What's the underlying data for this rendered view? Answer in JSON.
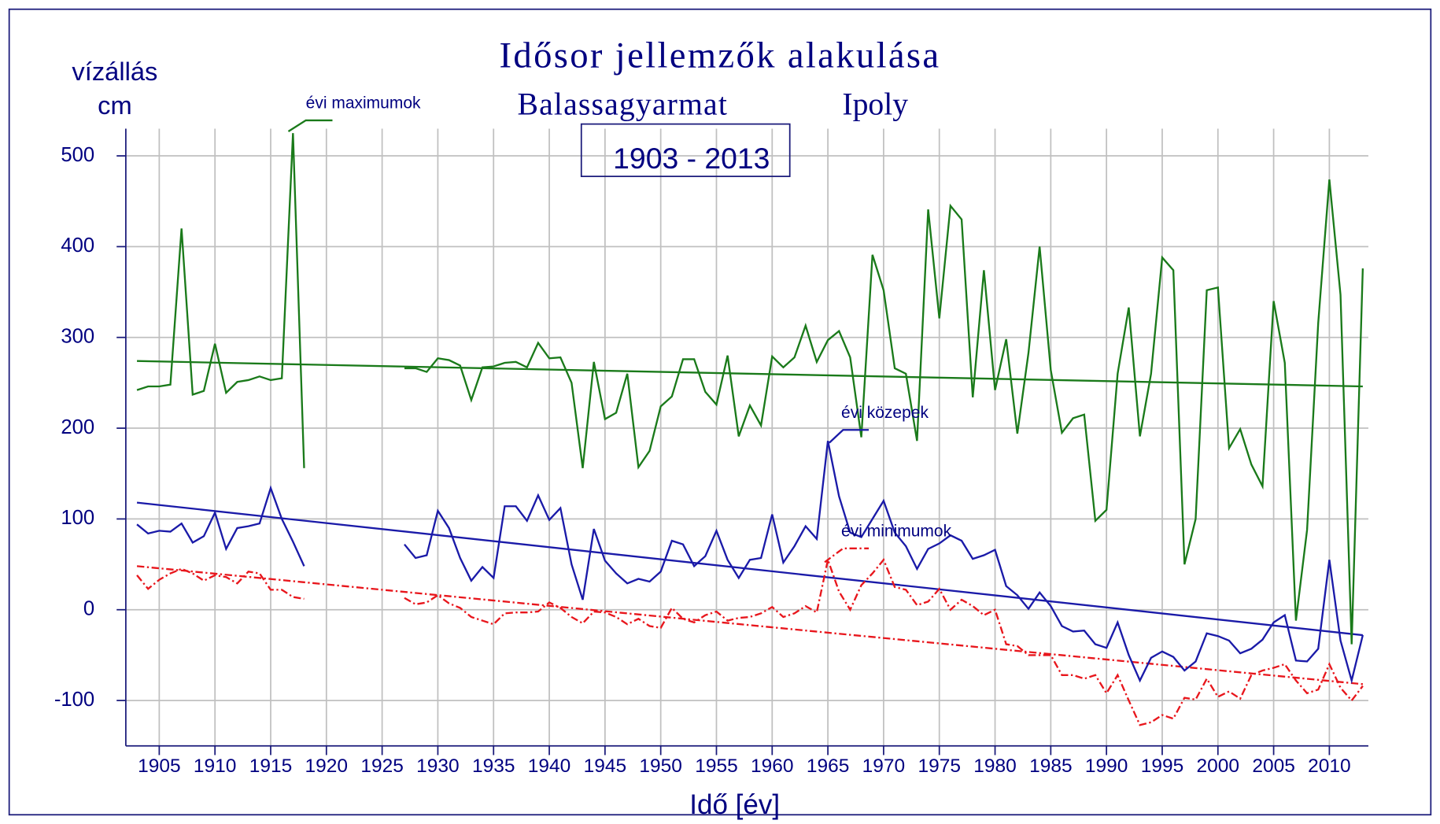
{
  "chart_data": {
    "type": "line",
    "title": "Idősor jellemzők alakulása",
    "subtitle": "Balassagyarmat",
    "river": "Ipoly",
    "period": "1903 - 2013",
    "y_label": [
      "vízállás",
      "cm"
    ],
    "x_label": "Idő [év]",
    "xlim": [
      1902,
      2013.5
    ],
    "ylim": [
      -150,
      530
    ],
    "xticks": [
      1905,
      1910,
      1915,
      1920,
      1925,
      1930,
      1935,
      1940,
      1945,
      1950,
      1955,
      1960,
      1965,
      1970,
      1975,
      1980,
      1985,
      1990,
      1995,
      2000,
      2005,
      2010
    ],
    "yticks": [
      -100,
      0,
      100,
      200,
      300,
      400,
      500
    ],
    "grid": true,
    "x": [
      1903,
      1904,
      1905,
      1906,
      1907,
      1908,
      1909,
      1910,
      1911,
      1912,
      1913,
      1914,
      1915,
      1916,
      1917,
      1918,
      1919,
      1920,
      1921,
      1922,
      1923,
      1924,
      1925,
      1926,
      1927,
      1928,
      1929,
      1930,
      1931,
      1932,
      1933,
      1934,
      1935,
      1936,
      1937,
      1938,
      1939,
      1940,
      1941,
      1942,
      1943,
      1944,
      1945,
      1946,
      1947,
      1948,
      1949,
      1950,
      1951,
      1952,
      1953,
      1954,
      1955,
      1956,
      1957,
      1958,
      1959,
      1960,
      1961,
      1962,
      1963,
      1964,
      1965,
      1966,
      1967,
      1968,
      1969,
      1970,
      1971,
      1972,
      1973,
      1974,
      1975,
      1976,
      1977,
      1978,
      1979,
      1980,
      1981,
      1982,
      1983,
      1984,
      1985,
      1986,
      1987,
      1988,
      1989,
      1990,
      1991,
      1992,
      1993,
      1994,
      1995,
      1996,
      1997,
      1998,
      1999,
      2000,
      2001,
      2002,
      2003,
      2004,
      2005,
      2006,
      2007,
      2008,
      2009,
      2010,
      2011,
      2012,
      2013
    ],
    "series": [
      {
        "name": "évi maximumok",
        "color": "#1a7a1a",
        "line_style": "solid",
        "values": [
          242,
          246,
          246,
          248,
          420,
          237,
          241,
          293,
          239,
          251,
          253,
          257,
          253,
          255,
          525,
          156,
          null,
          null,
          null,
          null,
          null,
          null,
          null,
          null,
          266,
          266,
          262,
          277,
          275,
          269,
          231,
          267,
          268,
          272,
          273,
          267,
          294,
          277,
          278,
          250,
          156,
          273,
          210,
          217,
          260,
          157,
          175,
          224,
          235,
          276,
          276,
          240,
          226,
          280,
          191,
          225,
          203,
          279,
          267,
          278,
          313,
          273,
          297,
          307,
          278,
          190,
          391,
          352,
          266,
          260,
          186,
          441,
          321,
          445,
          430,
          234,
          374,
          242,
          298,
          194,
          283,
          400,
          264,
          195,
          211,
          215,
          98,
          110,
          260,
          333,
          191,
          260,
          388,
          374,
          50,
          100,
          352,
          355,
          178,
          199,
          160,
          136,
          340,
          272,
          -12,
          88,
          316,
          474,
          347,
          -38,
          376
        ]
      },
      {
        "name": "évi közepek",
        "color": "#1a1aa8",
        "line_style": "solid",
        "values": [
          94,
          84,
          87,
          86,
          95,
          74,
          81,
          107,
          67,
          90,
          92,
          95,
          134,
          100,
          75,
          48,
          null,
          null,
          null,
          null,
          null,
          null,
          null,
          null,
          72,
          57,
          60,
          109,
          90,
          57,
          32,
          47,
          35,
          114,
          114,
          98,
          126,
          99,
          112,
          50,
          11,
          89,
          54,
          40,
          29,
          34,
          31,
          42,
          76,
          72,
          48,
          59,
          87,
          55,
          35,
          55,
          57,
          105,
          52,
          70,
          92,
          78,
          186,
          125,
          85,
          80,
          100,
          120,
          85,
          70,
          45,
          67,
          73,
          82,
          76,
          56,
          60,
          66,
          26,
          16,
          1,
          19,
          4,
          -18,
          -24,
          -23,
          -38,
          -42,
          -14,
          -50,
          -78,
          -53,
          -46,
          -52,
          -67,
          -57,
          -26,
          -29,
          -34,
          -48,
          -43,
          -33,
          -14,
          -6,
          -56,
          -57,
          -43,
          55,
          -34,
          -78,
          -28
        ]
      },
      {
        "name": "évi minimumok",
        "color": "#e8161c",
        "line_style": "dash-dot",
        "values": [
          38,
          23,
          33,
          40,
          45,
          40,
          32,
          38,
          36,
          29,
          42,
          40,
          22,
          22,
          14,
          12,
          null,
          null,
          null,
          null,
          null,
          null,
          null,
          null,
          13,
          6,
          8,
          16,
          7,
          2,
          -8,
          -12,
          -16,
          -4,
          -3,
          -3,
          -2,
          8,
          2,
          -8,
          -15,
          -2,
          -3,
          -8,
          -16,
          -10,
          -18,
          -20,
          2,
          -10,
          -14,
          -6,
          -2,
          -12,
          -9,
          -8,
          -4,
          3,
          -8,
          -4,
          4,
          -3,
          55,
          20,
          0,
          27,
          40,
          55,
          25,
          22,
          5,
          9,
          23,
          0,
          11,
          4,
          -6,
          0,
          -38,
          -40,
          -50,
          -50,
          -50,
          -72,
          -72,
          -76,
          -72,
          -92,
          -72,
          -100,
          -127,
          -124,
          -116,
          -120,
          -97,
          -99,
          -76,
          -96,
          -90,
          -98,
          -72,
          -67,
          -64,
          -60,
          -78,
          -92,
          -88,
          -60,
          -86,
          -100,
          -84
        ]
      }
    ],
    "trend_lines": [
      {
        "color": "#1a7a1a",
        "line_style": "solid",
        "x": [
          1903,
          2013
        ],
        "values": [
          274,
          246
        ]
      },
      {
        "color": "#1a1aa8",
        "line_style": "solid",
        "x": [
          1903,
          2013
        ],
        "values": [
          118,
          -28
        ]
      },
      {
        "color": "#e8161c",
        "line_style": "dash-dot",
        "x": [
          1903,
          2013
        ],
        "values": [
          48,
          -82
        ]
      }
    ]
  }
}
